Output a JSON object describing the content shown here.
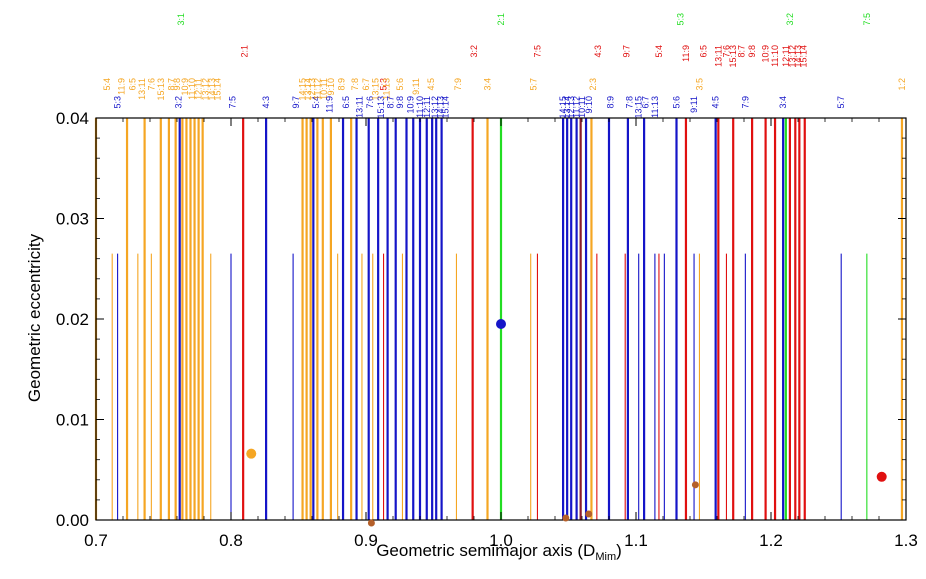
{
  "chart_data": {
    "type": "scatter",
    "xlabel": "Geometric semimajor axis (D",
    "xlabel_subscript": "Mim",
    "xlabel_close": ")",
    "ylabel": "Geometric eccentricity",
    "xlim": [
      0.7,
      1.3
    ],
    "ylim": [
      0.0,
      0.04
    ],
    "xticks": [
      0.7,
      0.8,
      0.9,
      1.0,
      1.1,
      1.2,
      1.3
    ],
    "xtick_labels": [
      "0.7",
      "0.8",
      "0.9",
      "1.0",
      "1.1",
      "1.2",
      "1.3"
    ],
    "yticks": [
      0.0,
      0.01,
      0.02,
      0.03,
      0.04
    ],
    "ytick_labels": [
      "0.00",
      "0.01",
      "0.02",
      "0.03",
      "0.04"
    ],
    "colors": {
      "orange": "#f5a623",
      "blue": "#1515c8",
      "red": "#e01010",
      "green": "#22dd22",
      "brown": "#b5602a",
      "darkred": "#8b1a2a"
    },
    "resonance_lines": [
      {
        "x": 0.7,
        "color": "orange",
        "height": "full"
      },
      {
        "x": 0.712,
        "color": "orange",
        "height": "short"
      },
      {
        "x": 0.716,
        "color": "blue",
        "height": "short"
      },
      {
        "x": 0.723,
        "color": "orange",
        "height": "full"
      },
      {
        "x": 0.731,
        "color": "orange",
        "height": "short"
      },
      {
        "x": 0.736,
        "color": "orange",
        "height": "full"
      },
      {
        "x": 0.741,
        "color": "orange",
        "height": "short"
      },
      {
        "x": 0.748,
        "color": "orange",
        "height": "full"
      },
      {
        "x": 0.754,
        "color": "orange",
        "height": "full"
      },
      {
        "x": 0.759,
        "color": "orange",
        "height": "full"
      },
      {
        "x": 0.762,
        "color": "blue",
        "height": "full"
      },
      {
        "x": 0.764,
        "color": "orange",
        "height": "full"
      },
      {
        "x": 0.767,
        "color": "orange",
        "height": "full"
      },
      {
        "x": 0.77,
        "color": "orange",
        "height": "full"
      },
      {
        "x": 0.773,
        "color": "orange",
        "height": "full"
      },
      {
        "x": 0.776,
        "color": "orange",
        "height": "full"
      },
      {
        "x": 0.779,
        "color": "orange",
        "height": "full"
      },
      {
        "x": 0.785,
        "color": "orange",
        "height": "short"
      },
      {
        "x": 0.8,
        "color": "blue",
        "height": "short"
      },
      {
        "x": 0.809,
        "color": "red",
        "height": "full"
      },
      {
        "x": 0.826,
        "color": "blue",
        "height": "full"
      },
      {
        "x": 0.846,
        "color": "blue",
        "height": "short"
      },
      {
        "x": 0.853,
        "color": "orange",
        "height": "full"
      },
      {
        "x": 0.856,
        "color": "orange",
        "height": "full"
      },
      {
        "x": 0.859,
        "color": "orange",
        "height": "full"
      },
      {
        "x": 0.861,
        "color": "blue",
        "height": "full"
      },
      {
        "x": 0.864,
        "color": "orange",
        "height": "full"
      },
      {
        "x": 0.868,
        "color": "orange",
        "height": "full"
      },
      {
        "x": 0.874,
        "color": "orange",
        "height": "full"
      },
      {
        "x": 0.879,
        "color": "orange",
        "height": "short"
      },
      {
        "x": 0.883,
        "color": "blue",
        "height": "full"
      },
      {
        "x": 0.889,
        "color": "orange",
        "height": "full"
      },
      {
        "x": 0.893,
        "color": "blue",
        "height": "full"
      },
      {
        "x": 0.897,
        "color": "orange",
        "height": "short"
      },
      {
        "x": 0.902,
        "color": "blue",
        "height": "full"
      },
      {
        "x": 0.905,
        "color": "orange",
        "height": "short"
      },
      {
        "x": 0.909,
        "color": "blue",
        "height": "full"
      },
      {
        "x": 0.913,
        "color": "red",
        "height": "short"
      },
      {
        "x": 0.916,
        "color": "blue",
        "height": "full"
      },
      {
        "x": 0.922,
        "color": "blue",
        "height": "full"
      },
      {
        "x": 0.927,
        "color": "orange",
        "height": "short"
      },
      {
        "x": 0.93,
        "color": "blue",
        "height": "full"
      },
      {
        "x": 0.935,
        "color": "blue",
        "height": "full"
      },
      {
        "x": 0.94,
        "color": "blue",
        "height": "full"
      },
      {
        "x": 0.945,
        "color": "blue",
        "height": "full"
      },
      {
        "x": 0.949,
        "color": "blue",
        "height": "full"
      },
      {
        "x": 0.952,
        "color": "blue",
        "height": "full"
      },
      {
        "x": 0.956,
        "color": "blue",
        "height": "full"
      },
      {
        "x": 0.967,
        "color": "orange",
        "height": "short"
      },
      {
        "x": 0.979,
        "color": "red",
        "height": "full"
      },
      {
        "x": 0.99,
        "color": "orange",
        "height": "full"
      },
      {
        "x": 1.0,
        "color": "green",
        "height": "full"
      },
      {
        "x": 1.022,
        "color": "orange",
        "height": "short"
      },
      {
        "x": 1.027,
        "color": "red",
        "height": "short"
      },
      {
        "x": 1.046,
        "color": "blue",
        "height": "full"
      },
      {
        "x": 1.049,
        "color": "blue",
        "height": "full"
      },
      {
        "x": 1.052,
        "color": "blue",
        "height": "full"
      },
      {
        "x": 1.056,
        "color": "blue",
        "height": "full"
      },
      {
        "x": 1.059,
        "color": "darkred",
        "height": "full"
      },
      {
        "x": 1.063,
        "color": "blue",
        "height": "full"
      },
      {
        "x": 1.067,
        "color": "orange",
        "height": "full"
      },
      {
        "x": 1.071,
        "color": "red",
        "height": "short"
      },
      {
        "x": 1.08,
        "color": "blue",
        "height": "full"
      },
      {
        "x": 1.092,
        "color": "red",
        "height": "short"
      },
      {
        "x": 1.094,
        "color": "blue",
        "height": "full"
      },
      {
        "x": 1.102,
        "color": "blue",
        "height": "short"
      },
      {
        "x": 1.106,
        "color": "blue",
        "height": "full"
      },
      {
        "x": 1.114,
        "color": "blue",
        "height": "short"
      },
      {
        "x": 1.117,
        "color": "red",
        "height": "short"
      },
      {
        "x": 1.121,
        "color": "blue",
        "height": "short"
      },
      {
        "x": 1.13,
        "color": "blue",
        "height": "full"
      },
      {
        "x": 1.137,
        "color": "red",
        "height": "full"
      },
      {
        "x": 1.143,
        "color": "blue",
        "height": "short"
      },
      {
        "x": 1.147,
        "color": "orange",
        "height": "short"
      },
      {
        "x": 1.159,
        "color": "blue",
        "height": "full"
      },
      {
        "x": 1.161,
        "color": "red",
        "height": "full"
      },
      {
        "x": 1.167,
        "color": "red",
        "height": "short"
      },
      {
        "x": 1.172,
        "color": "red",
        "height": "full"
      },
      {
        "x": 1.181,
        "color": "blue",
        "height": "short"
      },
      {
        "x": 1.186,
        "color": "red",
        "height": "full"
      },
      {
        "x": 1.196,
        "color": "red",
        "height": "full"
      },
      {
        "x": 1.203,
        "color": "red",
        "height": "full"
      },
      {
        "x": 1.209,
        "color": "blue",
        "height": "full"
      },
      {
        "x": 1.211,
        "color": "green",
        "height": "full"
      },
      {
        "x": 1.214,
        "color": "red",
        "height": "full"
      },
      {
        "x": 1.218,
        "color": "red",
        "height": "full"
      },
      {
        "x": 1.221,
        "color": "red",
        "height": "full"
      },
      {
        "x": 1.225,
        "color": "red",
        "height": "full"
      },
      {
        "x": 1.252,
        "color": "blue",
        "height": "short"
      },
      {
        "x": 1.271,
        "color": "green",
        "height": "short"
      },
      {
        "x": 1.297,
        "color": "orange",
        "height": "full"
      }
    ],
    "resonance_labels": [
      {
        "x": 0.708,
        "row": 3,
        "color": "orange",
        "text": "5:4"
      },
      {
        "x": 0.716,
        "row": 4,
        "color": "blue",
        "text": "5:3"
      },
      {
        "x": 0.719,
        "row": 2,
        "color": "orange",
        "text": "11:9"
      },
      {
        "x": 0.727,
        "row": 2,
        "color": "orange",
        "text": "6:5"
      },
      {
        "x": 0.734,
        "row": 2,
        "color": "orange",
        "text": "13:11"
      },
      {
        "x": 0.741,
        "row": 2,
        "color": "orange",
        "text": "7:6"
      },
      {
        "x": 0.748,
        "row": 2,
        "color": "orange",
        "text": "15:13"
      },
      {
        "x": 0.756,
        "row": 2,
        "color": "orange",
        "text": "8:7"
      },
      {
        "x": 0.763,
        "row": 0,
        "color": "green",
        "text": "3:1"
      },
      {
        "x": 0.76,
        "row": 2,
        "color": "orange",
        "text": "9:8"
      },
      {
        "x": 0.761,
        "row": 4,
        "color": "blue",
        "text": "3:2"
      },
      {
        "x": 0.766,
        "row": 2,
        "color": "orange",
        "text": "10:9"
      },
      {
        "x": 0.771,
        "row": 2,
        "color": "orange",
        "text": "11:10"
      },
      {
        "x": 0.776,
        "row": 2,
        "color": "orange",
        "text": "12:11"
      },
      {
        "x": 0.781,
        "row": 2,
        "color": "orange",
        "text": "13:12"
      },
      {
        "x": 0.786,
        "row": 2,
        "color": "orange",
        "text": "14:13"
      },
      {
        "x": 0.79,
        "row": 2,
        "color": "orange",
        "text": "15:14"
      },
      {
        "x": 0.801,
        "row": 4,
        "color": "blue",
        "text": "7:5"
      },
      {
        "x": 0.81,
        "row": 1,
        "color": "red",
        "text": "2:1"
      },
      {
        "x": 0.826,
        "row": 4,
        "color": "blue",
        "text": "4:3"
      },
      {
        "x": 0.848,
        "row": 4,
        "color": "blue",
        "text": "9:7"
      },
      {
        "x": 0.853,
        "row": 2,
        "color": "orange",
        "text": "14:15"
      },
      {
        "x": 0.857,
        "row": 2,
        "color": "orange",
        "text": "13:14"
      },
      {
        "x": 0.86,
        "row": 2,
        "color": "orange",
        "text": "12:13"
      },
      {
        "x": 0.863,
        "row": 4,
        "color": "blue",
        "text": "5:4"
      },
      {
        "x": 0.864,
        "row": 2,
        "color": "orange",
        "text": "11:12"
      },
      {
        "x": 0.869,
        "row": 2,
        "color": "orange",
        "text": "10:11"
      },
      {
        "x": 0.873,
        "row": 4,
        "color": "blue",
        "text": "11:9"
      },
      {
        "x": 0.874,
        "row": 2,
        "color": "orange",
        "text": "9:10"
      },
      {
        "x": 0.882,
        "row": 2,
        "color": "orange",
        "text": "8:9"
      },
      {
        "x": 0.885,
        "row": 4,
        "color": "blue",
        "text": "6:5"
      },
      {
        "x": 0.892,
        "row": 2,
        "color": "orange",
        "text": "7:8"
      },
      {
        "x": 0.895,
        "row": 4,
        "color": "blue",
        "text": "13:11"
      },
      {
        "x": 0.9,
        "row": 2,
        "color": "orange",
        "text": "6:7"
      },
      {
        "x": 0.903,
        "row": 4,
        "color": "blue",
        "text": "7:6"
      },
      {
        "x": 0.907,
        "row": 2,
        "color": "orange",
        "text": "13:15"
      },
      {
        "x": 0.911,
        "row": 4,
        "color": "blue",
        "text": "15:13"
      },
      {
        "x": 0.913,
        "row": 2,
        "color": "red",
        "text": "5:3"
      },
      {
        "x": 0.915,
        "row": 2,
        "color": "orange",
        "text": "11:13"
      },
      {
        "x": 0.918,
        "row": 4,
        "color": "blue",
        "text": "8:7"
      },
      {
        "x": 0.925,
        "row": 3,
        "color": "orange",
        "text": "5:6"
      },
      {
        "x": 0.925,
        "row": 4,
        "color": "blue",
        "text": "9:8"
      },
      {
        "x": 0.933,
        "row": 4,
        "color": "blue",
        "text": "10:9"
      },
      {
        "x": 0.937,
        "row": 2,
        "color": "orange",
        "text": "9:11"
      },
      {
        "x": 0.94,
        "row": 4,
        "color": "blue",
        "text": "11:10"
      },
      {
        "x": 0.945,
        "row": 4,
        "color": "blue",
        "text": "12:11"
      },
      {
        "x": 0.948,
        "row": 2,
        "color": "orange",
        "text": "4:5"
      },
      {
        "x": 0.951,
        "row": 4,
        "color": "blue",
        "text": "13:12"
      },
      {
        "x": 0.955,
        "row": 4,
        "color": "blue",
        "text": "14:13"
      },
      {
        "x": 0.959,
        "row": 4,
        "color": "blue",
        "text": "15:14"
      },
      {
        "x": 0.968,
        "row": 2,
        "color": "orange",
        "text": "7:9"
      },
      {
        "x": 0.98,
        "row": 1,
        "color": "red",
        "text": "3:2"
      },
      {
        "x": 0.99,
        "row": 3,
        "color": "orange",
        "text": "3:4"
      },
      {
        "x": 1.0,
        "row": 0,
        "color": "green",
        "text": "2:1"
      },
      {
        "x": 1.024,
        "row": 3,
        "color": "orange",
        "text": "5:7"
      },
      {
        "x": 1.027,
        "row": 1,
        "color": "red",
        "text": "7:5"
      },
      {
        "x": 1.046,
        "row": 4,
        "color": "blue",
        "text": "14:15"
      },
      {
        "x": 1.049,
        "row": 4,
        "color": "blue",
        "text": "13:14"
      },
      {
        "x": 1.052,
        "row": 4,
        "color": "blue",
        "text": "12:13"
      },
      {
        "x": 1.056,
        "row": 4,
        "color": "blue",
        "text": "11:12"
      },
      {
        "x": 1.06,
        "row": 4,
        "color": "blue",
        "text": "10:11"
      },
      {
        "x": 1.065,
        "row": 4,
        "color": "blue",
        "text": "9:10"
      },
      {
        "x": 1.072,
        "row": 1,
        "color": "red",
        "text": "4:3"
      },
      {
        "x": 1.068,
        "row": 3,
        "color": "orange",
        "text": "2:3"
      },
      {
        "x": 1.081,
        "row": 4,
        "color": "blue",
        "text": "8:9"
      },
      {
        "x": 1.093,
        "row": 1,
        "color": "red",
        "text": "9:7"
      },
      {
        "x": 1.095,
        "row": 4,
        "color": "blue",
        "text": "7:8"
      },
      {
        "x": 1.102,
        "row": 4,
        "color": "blue",
        "text": "13:15"
      },
      {
        "x": 1.107,
        "row": 4,
        "color": "blue",
        "text": "6:7"
      },
      {
        "x": 1.114,
        "row": 4,
        "color": "blue",
        "text": "11:13"
      },
      {
        "x": 1.117,
        "row": 1,
        "color": "red",
        "text": "5:4"
      },
      {
        "x": 1.13,
        "row": 4,
        "color": "blue",
        "text": "5:6"
      },
      {
        "x": 1.133,
        "row": 0,
        "color": "green",
        "text": "5:3"
      },
      {
        "x": 1.137,
        "row": 1,
        "color": "red",
        "text": "11:9"
      },
      {
        "x": 1.143,
        "row": 4,
        "color": "blue",
        "text": "9:11"
      },
      {
        "x": 1.147,
        "row": 3,
        "color": "orange",
        "text": "3:5"
      },
      {
        "x": 1.15,
        "row": 1,
        "color": "red",
        "text": "6:5"
      },
      {
        "x": 1.159,
        "row": 4,
        "color": "blue",
        "text": "4:5"
      },
      {
        "x": 1.161,
        "row": 1,
        "color": "red",
        "text": "13:11"
      },
      {
        "x": 1.167,
        "row": 1,
        "color": "red",
        "text": "7:6"
      },
      {
        "x": 1.172,
        "row": 1,
        "color": "red",
        "text": "15:13"
      },
      {
        "x": 1.181,
        "row": 4,
        "color": "blue",
        "text": "7:9"
      },
      {
        "x": 1.178,
        "row": 1,
        "color": "red",
        "text": "8:7"
      },
      {
        "x": 1.186,
        "row": 1,
        "color": "red",
        "text": "9:8"
      },
      {
        "x": 1.196,
        "row": 1,
        "color": "red",
        "text": "10:9"
      },
      {
        "x": 1.203,
        "row": 1,
        "color": "red",
        "text": "11:10"
      },
      {
        "x": 1.209,
        "row": 4,
        "color": "blue",
        "text": "3:4"
      },
      {
        "x": 1.211,
        "row": 1,
        "color": "red",
        "text": "12:11"
      },
      {
        "x": 1.214,
        "row": 0,
        "color": "green",
        "text": "3:2"
      },
      {
        "x": 1.216,
        "row": 1,
        "color": "red",
        "text": "13:12"
      },
      {
        "x": 1.22,
        "row": 1,
        "color": "red",
        "text": "14:13"
      },
      {
        "x": 1.224,
        "row": 1,
        "color": "red",
        "text": "15:14"
      },
      {
        "x": 1.252,
        "row": 4,
        "color": "blue",
        "text": "5:7"
      },
      {
        "x": 1.271,
        "row": 0,
        "color": "green",
        "text": "7:5"
      },
      {
        "x": 1.297,
        "row": 3,
        "color": "orange",
        "text": "1:2"
      }
    ],
    "points": [
      {
        "x": 0.815,
        "y": 0.0066,
        "color": "orange",
        "size": "large"
      },
      {
        "x": 1.0,
        "y": 0.0195,
        "color": "blue",
        "size": "large"
      },
      {
        "x": 1.282,
        "y": 0.0043,
        "color": "red",
        "size": "large"
      },
      {
        "x": 0.904,
        "y": -0.0003,
        "color": "brown",
        "size": "small"
      },
      {
        "x": 1.048,
        "y": 0.0002,
        "color": "brown",
        "size": "small"
      },
      {
        "x": 1.065,
        "y": 0.0006,
        "color": "brown",
        "size": "small"
      },
      {
        "x": 1.144,
        "y": 0.0035,
        "color": "brown",
        "size": "small"
      }
    ]
  }
}
